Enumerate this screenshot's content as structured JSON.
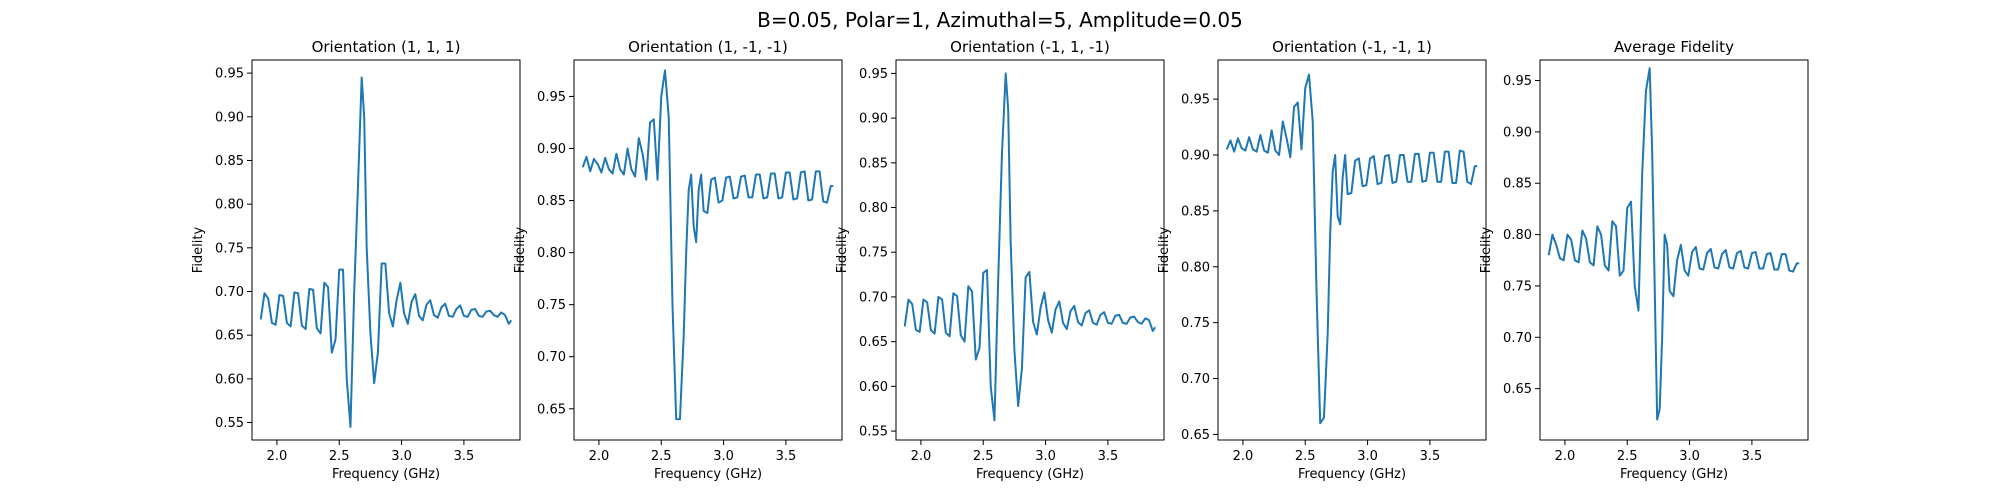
{
  "figure": {
    "suptitle": "B=0.05, Polar=1, Azimuthal=5, Amplitude=0.05"
  },
  "chart_data": [
    {
      "type": "line",
      "title": "Orientation (1, 1, 1)",
      "xlabel": "Frequency (GHz)",
      "ylabel": "Fidelity",
      "xlim": [
        1.8,
        3.95
      ],
      "ylim": [
        0.53,
        0.965
      ],
      "xticks": [
        2.0,
        2.5,
        3.0,
        3.5
      ],
      "xtick_labels": [
        "2.0",
        "2.5",
        "3.0",
        "3.5"
      ],
      "yticks": [
        0.55,
        0.6,
        0.65,
        0.7,
        0.75,
        0.8,
        0.85,
        0.9,
        0.95
      ],
      "ytick_labels": [
        "0.55",
        "0.60",
        "0.65",
        "0.70",
        "0.75",
        "0.80",
        "0.85",
        "0.90",
        "0.95"
      ],
      "grid": false,
      "line_color": "#1f77b4",
      "series": [
        {
          "x": [
            1.87,
            1.9,
            1.93,
            1.96,
            1.99,
            2.02,
            2.05,
            2.08,
            2.11,
            2.14,
            2.17,
            2.2,
            2.23,
            2.26,
            2.29,
            2.32,
            2.35,
            2.38,
            2.41,
            2.44,
            2.47,
            2.5,
            2.53,
            2.56,
            2.59,
            2.62,
            2.65,
            2.68,
            2.7,
            2.72,
            2.75,
            2.78,
            2.81,
            2.84,
            2.87,
            2.9,
            2.93,
            2.96,
            2.99,
            3.02,
            3.05,
            3.08,
            3.11,
            3.14,
            3.17,
            3.2,
            3.23,
            3.26,
            3.29,
            3.32,
            3.35,
            3.38,
            3.41,
            3.44,
            3.47,
            3.5,
            3.53,
            3.56,
            3.59,
            3.62,
            3.65,
            3.68,
            3.71,
            3.74,
            3.77,
            3.8,
            3.83,
            3.86,
            3.88
          ],
          "y": [
            0.668,
            0.698,
            0.692,
            0.664,
            0.662,
            0.696,
            0.695,
            0.664,
            0.66,
            0.699,
            0.698,
            0.661,
            0.657,
            0.703,
            0.702,
            0.658,
            0.652,
            0.71,
            0.705,
            0.63,
            0.645,
            0.725,
            0.725,
            0.6,
            0.545,
            0.7,
            0.82,
            0.945,
            0.9,
            0.75,
            0.652,
            0.595,
            0.63,
            0.732,
            0.732,
            0.675,
            0.66,
            0.69,
            0.71,
            0.675,
            0.663,
            0.688,
            0.697,
            0.672,
            0.667,
            0.685,
            0.69,
            0.673,
            0.67,
            0.682,
            0.686,
            0.672,
            0.671,
            0.68,
            0.684,
            0.672,
            0.671,
            0.679,
            0.68,
            0.672,
            0.671,
            0.677,
            0.678,
            0.673,
            0.671,
            0.676,
            0.673,
            0.663,
            0.667
          ]
        }
      ]
    },
    {
      "type": "line",
      "title": "Orientation (1, -1, -1)",
      "xlabel": "Frequency (GHz)",
      "ylabel": "Fidelity",
      "xlim": [
        1.8,
        3.95
      ],
      "ylim": [
        0.62,
        0.985
      ],
      "xticks": [
        2.0,
        2.5,
        3.0,
        3.5
      ],
      "xtick_labels": [
        "2.0",
        "2.5",
        "3.0",
        "3.5"
      ],
      "yticks": [
        0.65,
        0.7,
        0.75,
        0.8,
        0.85,
        0.9,
        0.95
      ],
      "ytick_labels": [
        "0.65",
        "0.70",
        "0.75",
        "0.80",
        "0.85",
        "0.90",
        "0.95"
      ],
      "grid": false,
      "line_color": "#1f77b4",
      "series": [
        {
          "x": [
            1.87,
            1.9,
            1.93,
            1.96,
            1.99,
            2.02,
            2.05,
            2.08,
            2.11,
            2.14,
            2.17,
            2.2,
            2.23,
            2.26,
            2.29,
            2.32,
            2.35,
            2.38,
            2.41,
            2.44,
            2.47,
            2.5,
            2.53,
            2.56,
            2.59,
            2.62,
            2.65,
            2.68,
            2.7,
            2.72,
            2.74,
            2.76,
            2.78,
            2.8,
            2.82,
            2.84,
            2.87,
            2.9,
            2.93,
            2.96,
            2.99,
            3.02,
            3.05,
            3.08,
            3.11,
            3.14,
            3.17,
            3.2,
            3.23,
            3.26,
            3.29,
            3.32,
            3.35,
            3.38,
            3.41,
            3.44,
            3.47,
            3.5,
            3.53,
            3.56,
            3.59,
            3.62,
            3.65,
            3.68,
            3.71,
            3.74,
            3.77,
            3.8,
            3.83,
            3.86,
            3.88
          ],
          "y": [
            0.882,
            0.892,
            0.878,
            0.89,
            0.885,
            0.877,
            0.891,
            0.88,
            0.876,
            0.895,
            0.88,
            0.875,
            0.9,
            0.88,
            0.873,
            0.91,
            0.895,
            0.87,
            0.925,
            0.928,
            0.87,
            0.95,
            0.975,
            0.93,
            0.75,
            0.64,
            0.64,
            0.72,
            0.8,
            0.86,
            0.875,
            0.825,
            0.81,
            0.86,
            0.875,
            0.84,
            0.838,
            0.87,
            0.872,
            0.848,
            0.85,
            0.872,
            0.873,
            0.852,
            0.853,
            0.873,
            0.874,
            0.853,
            0.853,
            0.875,
            0.875,
            0.852,
            0.853,
            0.876,
            0.876,
            0.852,
            0.853,
            0.877,
            0.877,
            0.851,
            0.852,
            0.877,
            0.878,
            0.85,
            0.851,
            0.878,
            0.878,
            0.849,
            0.848,
            0.864,
            0.864
          ]
        }
      ]
    },
    {
      "type": "line",
      "title": "Orientation (-1, 1, -1)",
      "xlabel": "Frequency (GHz)",
      "ylabel": "Fidelity",
      "xlim": [
        1.8,
        3.95
      ],
      "ylim": [
        0.54,
        0.965
      ],
      "xticks": [
        2.0,
        2.5,
        3.0,
        3.5
      ],
      "xtick_labels": [
        "2.0",
        "2.5",
        "3.0",
        "3.5"
      ],
      "yticks": [
        0.55,
        0.6,
        0.65,
        0.7,
        0.75,
        0.8,
        0.85,
        0.9,
        0.95
      ],
      "ytick_labels": [
        "0.55",
        "0.60",
        "0.65",
        "0.70",
        "0.75",
        "0.80",
        "0.85",
        "0.90",
        "0.95"
      ],
      "grid": false,
      "line_color": "#1f77b4",
      "series": [
        {
          "x": [
            1.87,
            1.9,
            1.93,
            1.96,
            1.99,
            2.02,
            2.05,
            2.08,
            2.11,
            2.14,
            2.17,
            2.2,
            2.23,
            2.26,
            2.29,
            2.32,
            2.35,
            2.38,
            2.41,
            2.44,
            2.47,
            2.5,
            2.53,
            2.56,
            2.59,
            2.62,
            2.65,
            2.68,
            2.7,
            2.72,
            2.75,
            2.78,
            2.81,
            2.84,
            2.87,
            2.9,
            2.93,
            2.96,
            2.99,
            3.02,
            3.05,
            3.08,
            3.11,
            3.14,
            3.17,
            3.2,
            3.23,
            3.26,
            3.29,
            3.32,
            3.35,
            3.38,
            3.41,
            3.44,
            3.47,
            3.5,
            3.53,
            3.56,
            3.59,
            3.62,
            3.65,
            3.68,
            3.71,
            3.74,
            3.77,
            3.8,
            3.83,
            3.86,
            3.88
          ],
          "y": [
            0.667,
            0.697,
            0.692,
            0.663,
            0.661,
            0.697,
            0.694,
            0.663,
            0.659,
            0.7,
            0.697,
            0.66,
            0.656,
            0.704,
            0.701,
            0.657,
            0.65,
            0.712,
            0.706,
            0.63,
            0.643,
            0.727,
            0.73,
            0.6,
            0.562,
            0.72,
            0.86,
            0.95,
            0.91,
            0.76,
            0.64,
            0.578,
            0.62,
            0.722,
            0.728,
            0.672,
            0.658,
            0.688,
            0.705,
            0.674,
            0.66,
            0.686,
            0.695,
            0.671,
            0.664,
            0.684,
            0.69,
            0.672,
            0.668,
            0.682,
            0.685,
            0.671,
            0.669,
            0.68,
            0.683,
            0.671,
            0.67,
            0.679,
            0.68,
            0.671,
            0.67,
            0.677,
            0.678,
            0.672,
            0.67,
            0.676,
            0.674,
            0.662,
            0.666
          ]
        }
      ]
    },
    {
      "type": "line",
      "title": "Orientation (-1, -1, 1)",
      "xlabel": "Frequency (GHz)",
      "ylabel": "Fidelity",
      "xlim": [
        1.8,
        3.95
      ],
      "ylim": [
        0.645,
        0.985
      ],
      "xticks": [
        2.0,
        2.5,
        3.0,
        3.5
      ],
      "xtick_labels": [
        "2.0",
        "2.5",
        "3.0",
        "3.5"
      ],
      "yticks": [
        0.65,
        0.7,
        0.75,
        0.8,
        0.85,
        0.9,
        0.95
      ],
      "ytick_labels": [
        "0.65",
        "0.70",
        "0.75",
        "0.80",
        "0.85",
        "0.90",
        "0.95"
      ],
      "grid": false,
      "line_color": "#1f77b4",
      "series": [
        {
          "x": [
            1.87,
            1.9,
            1.93,
            1.96,
            1.99,
            2.02,
            2.05,
            2.08,
            2.11,
            2.14,
            2.17,
            2.2,
            2.23,
            2.26,
            2.29,
            2.32,
            2.35,
            2.38,
            2.41,
            2.44,
            2.47,
            2.5,
            2.53,
            2.56,
            2.59,
            2.62,
            2.65,
            2.68,
            2.7,
            2.72,
            2.74,
            2.76,
            2.78,
            2.8,
            2.82,
            2.84,
            2.87,
            2.9,
            2.93,
            2.96,
            2.99,
            3.02,
            3.05,
            3.08,
            3.11,
            3.14,
            3.17,
            3.2,
            3.23,
            3.26,
            3.29,
            3.32,
            3.35,
            3.38,
            3.41,
            3.44,
            3.47,
            3.5,
            3.53,
            3.56,
            3.59,
            3.62,
            3.65,
            3.68,
            3.71,
            3.74,
            3.77,
            3.8,
            3.83,
            3.86,
            3.88
          ],
          "y": [
            0.905,
            0.913,
            0.903,
            0.915,
            0.906,
            0.904,
            0.916,
            0.905,
            0.903,
            0.918,
            0.904,
            0.902,
            0.922,
            0.904,
            0.9,
            0.93,
            0.915,
            0.898,
            0.943,
            0.947,
            0.905,
            0.96,
            0.972,
            0.93,
            0.78,
            0.66,
            0.665,
            0.74,
            0.83,
            0.885,
            0.9,
            0.845,
            0.838,
            0.88,
            0.9,
            0.865,
            0.866,
            0.895,
            0.897,
            0.872,
            0.873,
            0.897,
            0.899,
            0.874,
            0.875,
            0.899,
            0.9,
            0.875,
            0.876,
            0.9,
            0.9,
            0.876,
            0.876,
            0.901,
            0.901,
            0.876,
            0.877,
            0.902,
            0.902,
            0.876,
            0.876,
            0.903,
            0.903,
            0.875,
            0.875,
            0.904,
            0.903,
            0.876,
            0.874,
            0.89,
            0.89
          ]
        }
      ]
    },
    {
      "type": "line",
      "title": "Average Fidelity",
      "xlabel": "Frequency (GHz)",
      "ylabel": "Fidelity",
      "xlim": [
        1.8,
        3.95
      ],
      "ylim": [
        0.6,
        0.97
      ],
      "xticks": [
        2.0,
        2.5,
        3.0,
        3.5
      ],
      "xtick_labels": [
        "2.0",
        "2.5",
        "3.0",
        "3.5"
      ],
      "yticks": [
        0.65,
        0.7,
        0.75,
        0.8,
        0.85,
        0.9,
        0.95
      ],
      "ytick_labels": [
        "0.65",
        "0.70",
        "0.75",
        "0.80",
        "0.85",
        "0.90",
        "0.95"
      ],
      "grid": false,
      "line_color": "#1f77b4",
      "series": [
        {
          "x": [
            1.87,
            1.9,
            1.93,
            1.96,
            1.99,
            2.02,
            2.05,
            2.08,
            2.11,
            2.14,
            2.17,
            2.2,
            2.23,
            2.26,
            2.29,
            2.32,
            2.35,
            2.38,
            2.41,
            2.44,
            2.47,
            2.5,
            2.53,
            2.56,
            2.59,
            2.62,
            2.65,
            2.68,
            2.7,
            2.72,
            2.74,
            2.76,
            2.78,
            2.8,
            2.82,
            2.84,
            2.87,
            2.9,
            2.93,
            2.96,
            2.99,
            3.02,
            3.05,
            3.08,
            3.11,
            3.14,
            3.17,
            3.2,
            3.23,
            3.26,
            3.29,
            3.32,
            3.35,
            3.38,
            3.41,
            3.44,
            3.47,
            3.5,
            3.53,
            3.56,
            3.59,
            3.62,
            3.65,
            3.68,
            3.71,
            3.74,
            3.77,
            3.8,
            3.83,
            3.86,
            3.88
          ],
          "y": [
            0.78,
            0.8,
            0.79,
            0.777,
            0.775,
            0.8,
            0.795,
            0.775,
            0.773,
            0.804,
            0.796,
            0.773,
            0.77,
            0.808,
            0.8,
            0.77,
            0.765,
            0.813,
            0.808,
            0.76,
            0.765,
            0.826,
            0.832,
            0.75,
            0.726,
            0.86,
            0.94,
            0.962,
            0.88,
            0.75,
            0.62,
            0.63,
            0.7,
            0.8,
            0.79,
            0.745,
            0.74,
            0.775,
            0.79,
            0.765,
            0.76,
            0.783,
            0.788,
            0.767,
            0.766,
            0.782,
            0.786,
            0.768,
            0.767,
            0.781,
            0.785,
            0.768,
            0.767,
            0.782,
            0.784,
            0.768,
            0.767,
            0.782,
            0.783,
            0.767,
            0.767,
            0.781,
            0.782,
            0.766,
            0.766,
            0.781,
            0.781,
            0.765,
            0.764,
            0.772,
            0.772
          ]
        }
      ]
    }
  ]
}
